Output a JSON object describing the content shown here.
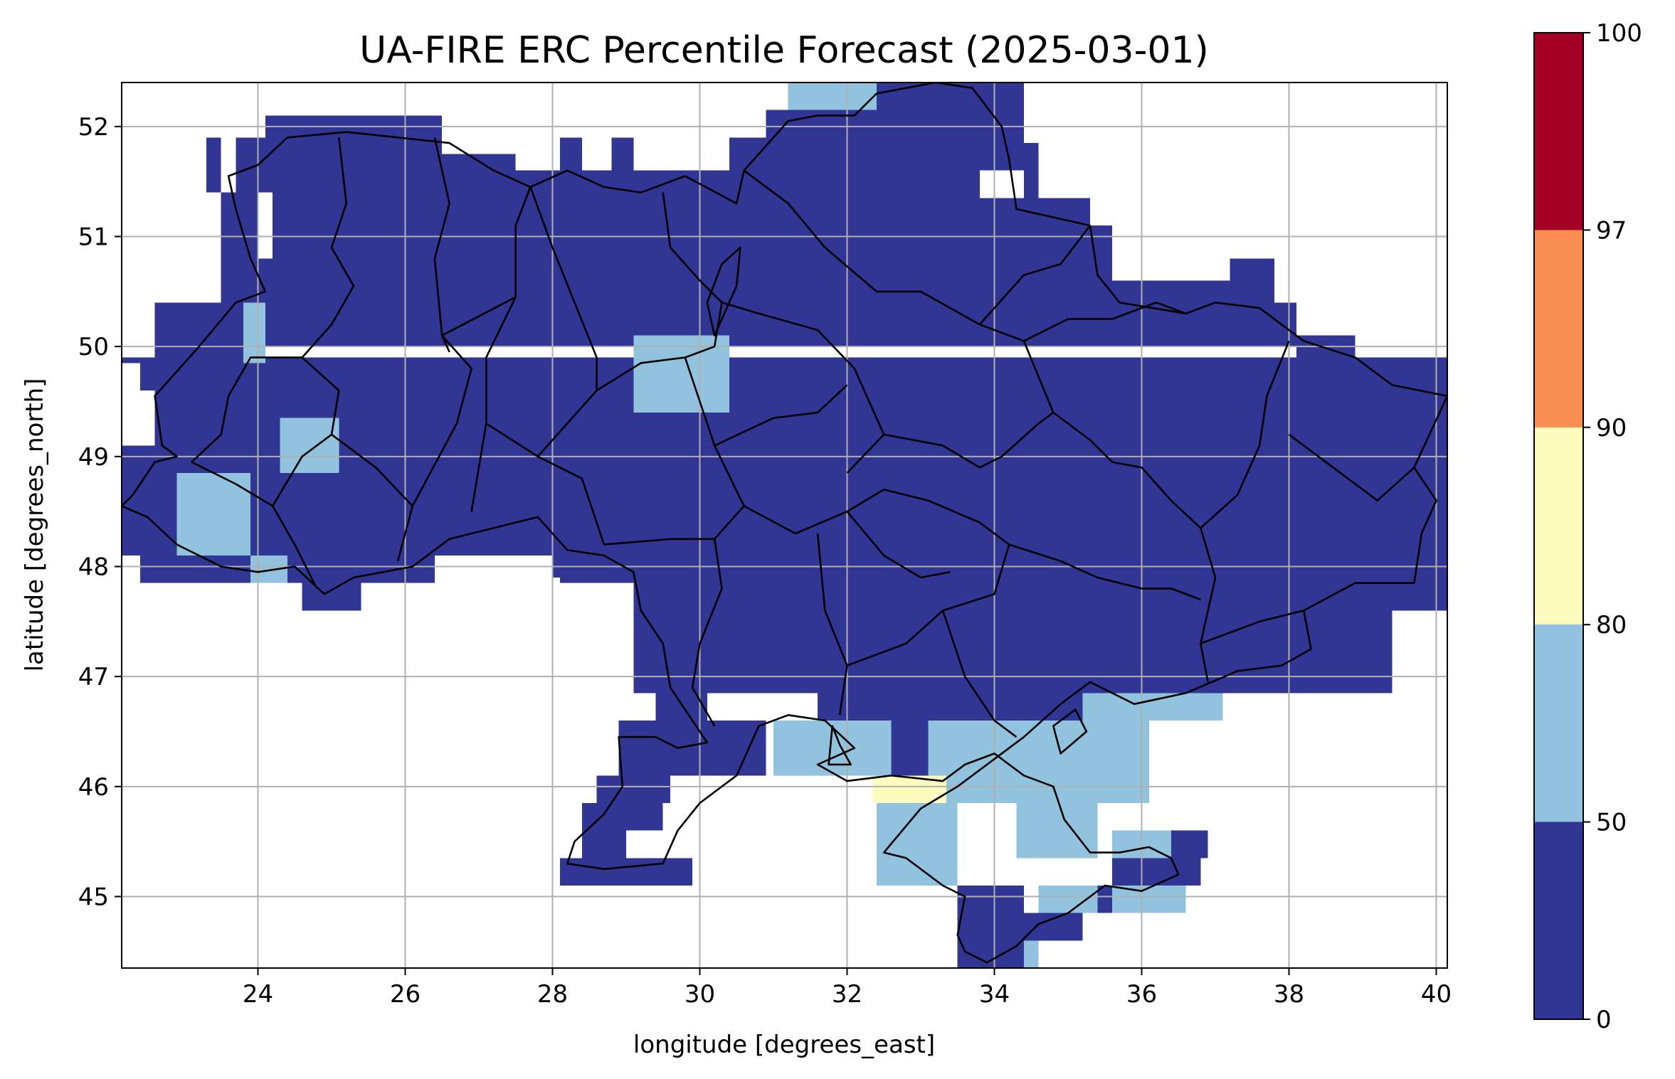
{
  "chart_data": {
    "type": "heatmap",
    "title": "UA-FIRE ERC Percentile Forecast (2025-03-01)",
    "xlabel": "longitude [degrees_east]",
    "ylabel": "latitude [degrees_north]",
    "xlim": [
      22.15,
      40.15
    ],
    "ylim": [
      44.35,
      52.4
    ],
    "xticks": [
      24,
      26,
      28,
      30,
      32,
      34,
      36,
      38,
      40
    ],
    "yticks": [
      45,
      46,
      47,
      48,
      49,
      50,
      51,
      52
    ],
    "xtick_labels": [
      "24",
      "26",
      "28",
      "30",
      "32",
      "34",
      "36",
      "38",
      "40"
    ],
    "ytick_labels": [
      "45",
      "46",
      "47",
      "48",
      "49",
      "50",
      "51",
      "52"
    ],
    "grid": true,
    "colorbar": {
      "bounds": [
        0,
        50,
        80,
        90,
        97,
        100
      ],
      "labels": [
        "0",
        "50",
        "80",
        "90",
        "97",
        "100"
      ],
      "colors": [
        "#313695",
        "#91c3de",
        "#fefbbe",
        "#f88e52",
        "#a50026"
      ]
    },
    "background_class": "0-50",
    "patches": [
      {
        "class": "50-80",
        "lon": [
          31.2,
          31.6
        ],
        "lat": [
          52.15,
          52.4
        ]
      },
      {
        "class": "50-80",
        "lon": [
          31.6,
          32.4
        ],
        "lat": [
          52.15,
          52.4
        ]
      },
      {
        "class": "50-80",
        "lon": [
          23.8,
          24.1
        ],
        "lat": [
          49.85,
          50.4
        ]
      },
      {
        "class": "50-80",
        "lon": [
          24.3,
          25.1
        ],
        "lat": [
          48.85,
          49.35
        ]
      },
      {
        "class": "50-80",
        "lon": [
          29.1,
          30.4
        ],
        "lat": [
          49.4,
          50.1
        ]
      },
      {
        "class": "50-80",
        "lon": [
          22.9,
          23.9
        ],
        "lat": [
          48.1,
          48.85
        ]
      },
      {
        "class": "50-80",
        "lon": [
          23.9,
          24.4
        ],
        "lat": [
          47.85,
          48.1
        ]
      },
      {
        "class": "50-80",
        "lon": [
          31.0,
          32.6
        ],
        "lat": [
          46.1,
          46.6
        ]
      },
      {
        "class": "50-80",
        "lon": [
          33.1,
          36.1
        ],
        "lat": [
          45.85,
          46.6
        ]
      },
      {
        "class": "50-80",
        "lon": [
          35.2,
          37.1
        ],
        "lat": [
          46.6,
          46.85
        ]
      },
      {
        "class": "50-80",
        "lon": [
          32.4,
          33.5
        ],
        "lat": [
          45.1,
          45.9
        ]
      },
      {
        "class": "50-80",
        "lon": [
          34.3,
          35.4
        ],
        "lat": [
          45.35,
          45.85
        ]
      },
      {
        "class": "50-80",
        "lon": [
          35.6,
          36.4
        ],
        "lat": [
          45.35,
          45.6
        ]
      },
      {
        "class": "50-80",
        "lon": [
          34.6,
          35.4
        ],
        "lat": [
          44.85,
          45.1
        ]
      },
      {
        "class": "50-80",
        "lon": [
          35.6,
          36.6
        ],
        "lat": [
          44.85,
          45.1
        ]
      },
      {
        "class": "50-80",
        "lon": [
          34.4,
          34.6
        ],
        "lat": [
          44.35,
          44.6
        ]
      },
      {
        "class": "80-90",
        "lon": [
          32.35,
          33.35
        ],
        "lat": [
          45.85,
          46.1
        ]
      }
    ]
  }
}
